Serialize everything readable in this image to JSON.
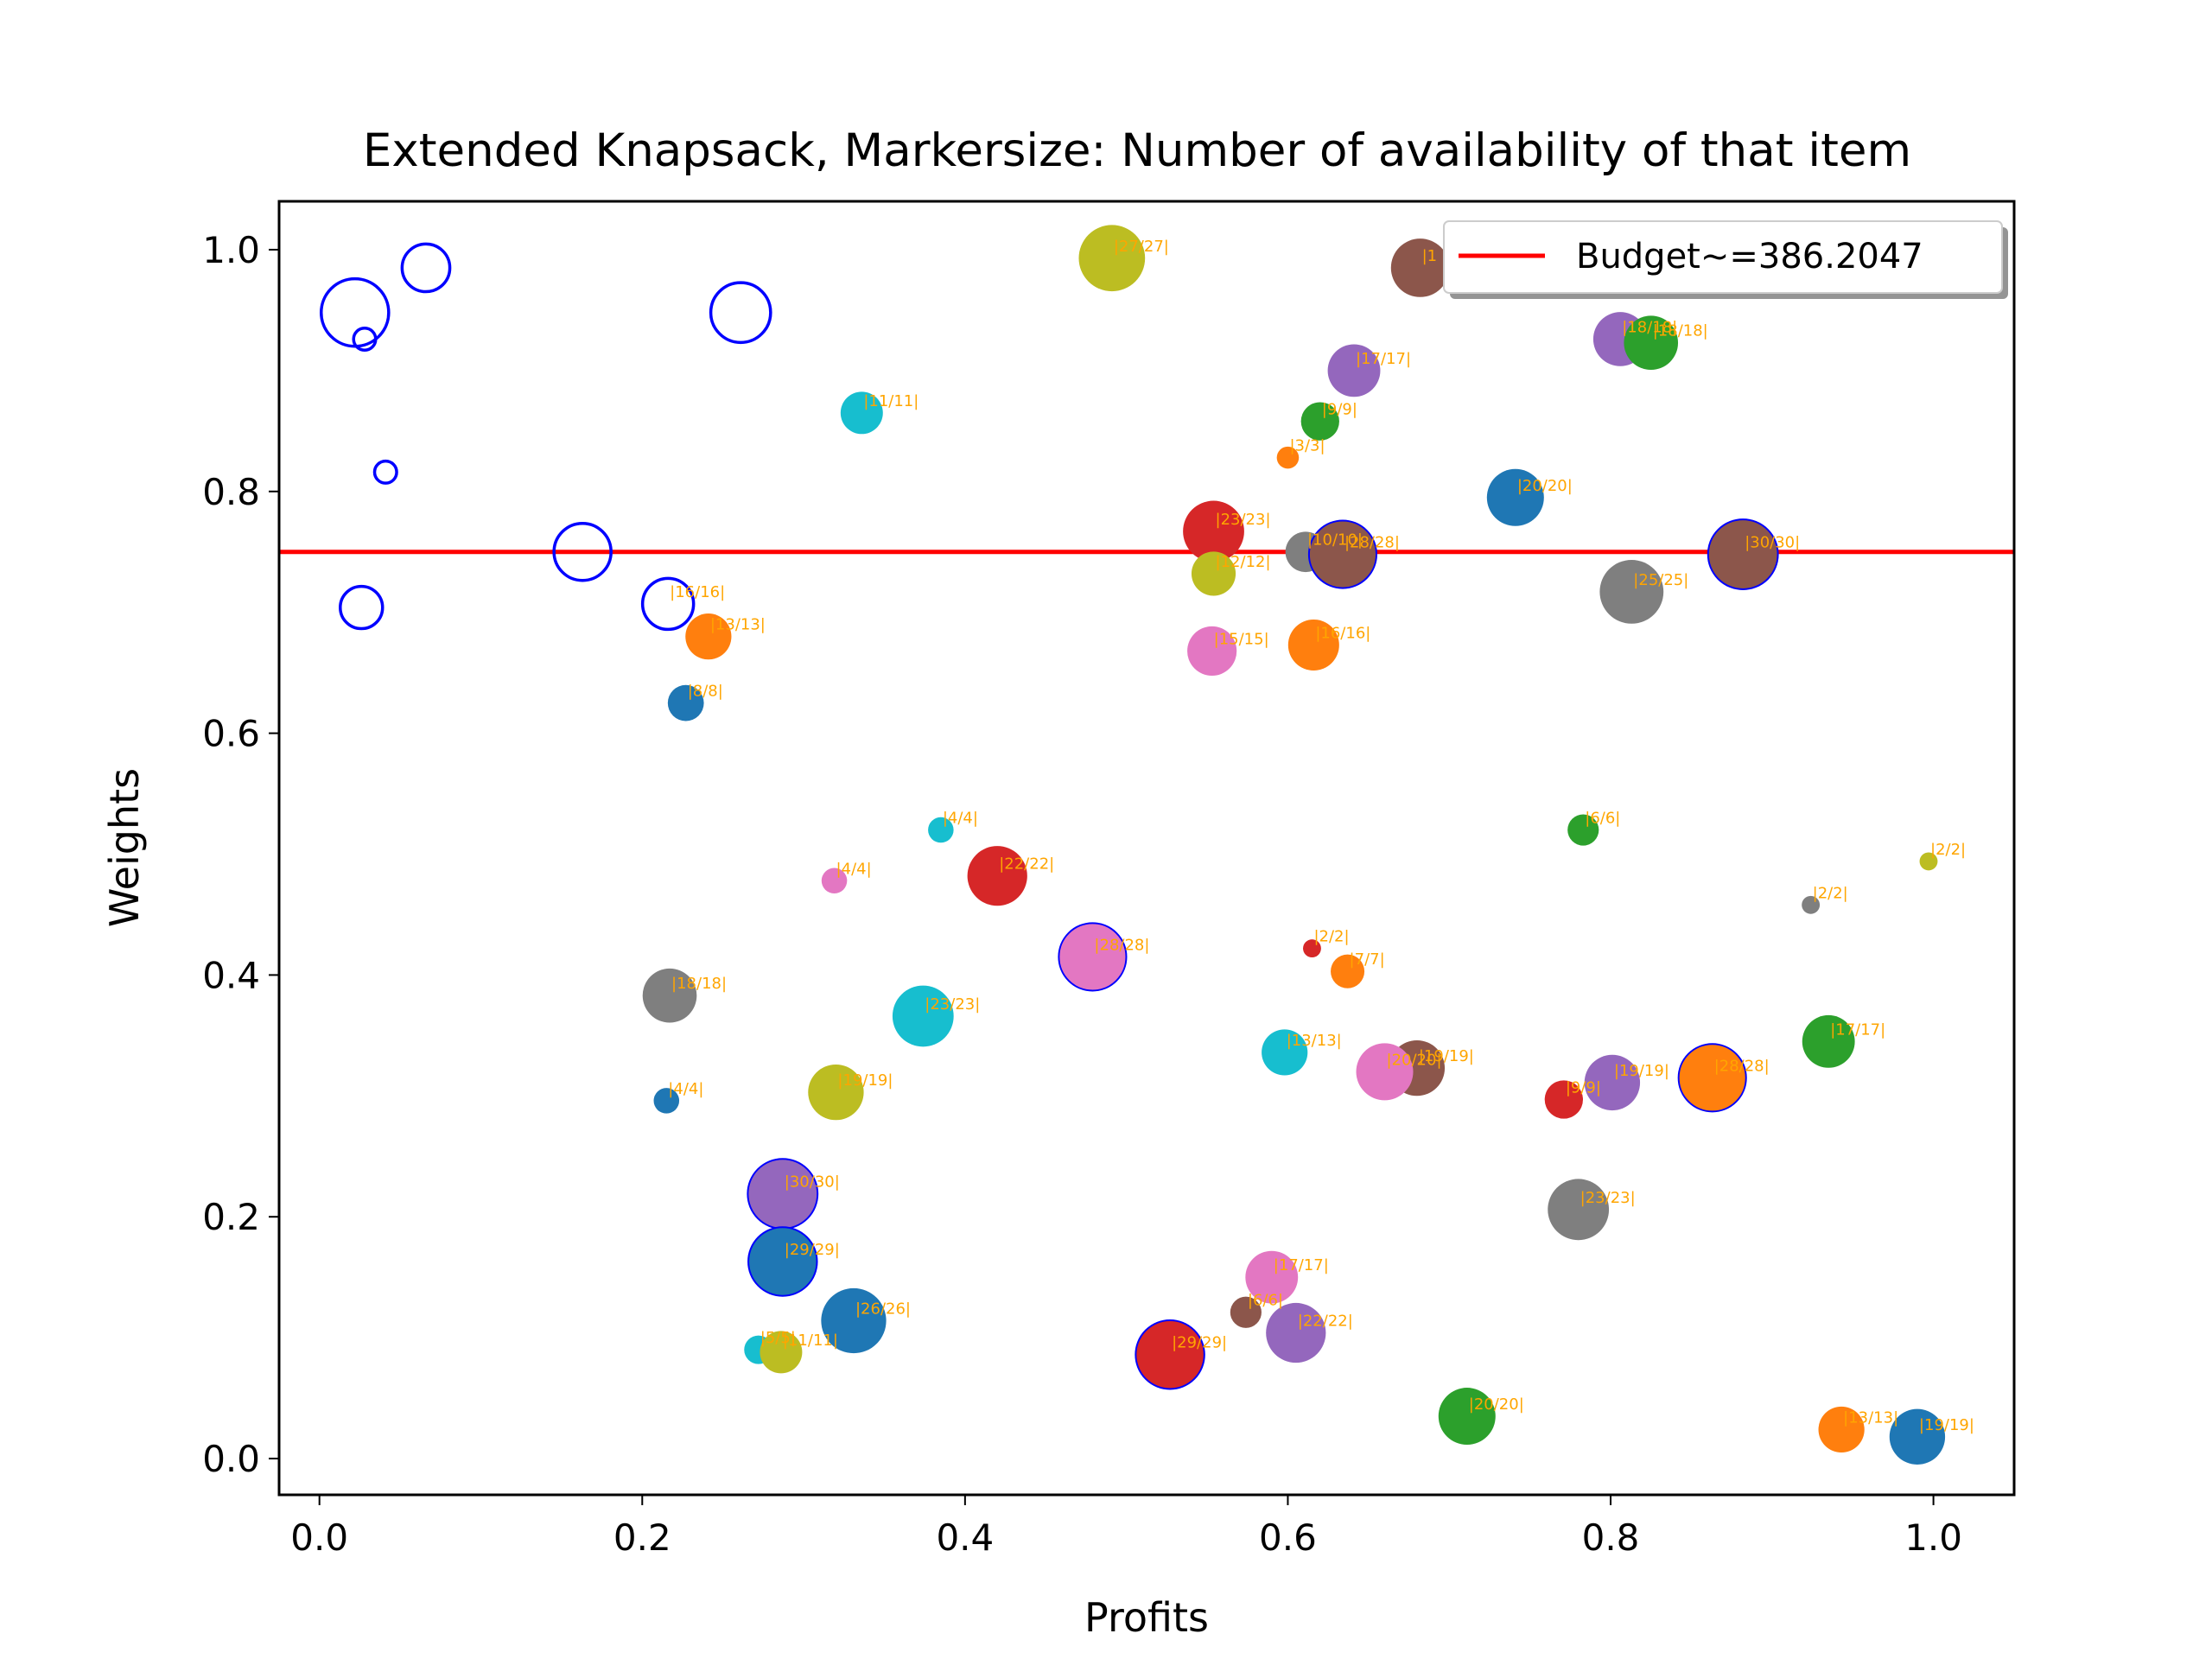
{
  "chart_data": {
    "type": "scatter",
    "title": "Extended Knapsack, Markersize: Number of availability of that item",
    "xlabel": "Profits",
    "ylabel": "Weights",
    "xlim": [
      -0.025,
      1.05
    ],
    "ylim": [
      -0.03,
      1.04
    ],
    "xticks": [
      0.0,
      0.2,
      0.4,
      0.6,
      0.8,
      1.0
    ],
    "xtick_labels": [
      "0.0",
      "0.2",
      "0.4",
      "0.6",
      "0.8",
      "1.0"
    ],
    "yticks": [
      0.0,
      0.2,
      0.4,
      0.6,
      0.8,
      1.0
    ],
    "ytick_labels": [
      "0.0",
      "0.2",
      "0.4",
      "0.6",
      "0.8",
      "1.0"
    ],
    "grid": false,
    "legend": {
      "placement": "top-right",
      "entries": [
        "Budget~=386.2047"
      ]
    },
    "budget_line": {
      "y": 0.75,
      "color": "#FF0000",
      "label": "Budget~=386.2047"
    },
    "colors": {
      "blue": "#1f77b4",
      "orange": "#ff7f0e",
      "green": "#2ca02c",
      "red": "#d62728",
      "purple": "#9467bd",
      "brown": "#8c564b",
      "pink": "#e377c2",
      "gray": "#7f7f7f",
      "olive": "#bcbd22",
      "cyan": "#17becf",
      "unselected": "#0000FF",
      "label": "#FFA500"
    },
    "selected_items": [
      {
        "x": 0.491,
        "y": 0.993,
        "n": 27,
        "color": "olive",
        "label": "|27/27|"
      },
      {
        "x": 0.682,
        "y": 0.985,
        "n": 21,
        "color": "brown",
        "label": "|1"
      },
      {
        "x": 0.806,
        "y": 0.926,
        "n": 18,
        "color": "purple",
        "label": "|18/18|"
      },
      {
        "x": 0.825,
        "y": 0.923,
        "n": 18,
        "color": "green",
        "label": "|18/18|"
      },
      {
        "x": 0.641,
        "y": 0.9,
        "n": 17,
        "color": "purple",
        "label": "|17/17|"
      },
      {
        "x": 0.336,
        "y": 0.865,
        "n": 11,
        "color": "cyan",
        "label": "|11/11|"
      },
      {
        "x": 0.62,
        "y": 0.858,
        "n": 9,
        "color": "green",
        "label": "|9/9|"
      },
      {
        "x": 0.6,
        "y": 0.828,
        "n": 3,
        "color": "orange",
        "label": "|3/3|"
      },
      {
        "x": 0.741,
        "y": 0.795,
        "n": 20,
        "color": "blue",
        "label": "|20/20|"
      },
      {
        "x": 0.554,
        "y": 0.767,
        "n": 23,
        "color": "red",
        "label": "|23/23|"
      },
      {
        "x": 0.611,
        "y": 0.75,
        "n": 10,
        "color": "gray",
        "label": "|10/10|"
      },
      {
        "x": 0.634,
        "y": 0.748,
        "n": 28,
        "color": "brown",
        "label": "|28/28|",
        "edge": true
      },
      {
        "x": 0.882,
        "y": 0.748,
        "n": 30,
        "color": "brown",
        "label": "|30/30|",
        "edge": true
      },
      {
        "x": 0.554,
        "y": 0.732,
        "n": 12,
        "color": "olive",
        "label": "|12/12|"
      },
      {
        "x": 0.813,
        "y": 0.717,
        "n": 25,
        "color": "gray",
        "label": "|25/25|"
      },
      {
        "x": 0.216,
        "y": 0.707,
        "n": 16,
        "color": "blue",
        "label": "|16/16|",
        "hollow": true
      },
      {
        "x": 0.241,
        "y": 0.68,
        "n": 13,
        "color": "orange",
        "label": "|13/13|"
      },
      {
        "x": 0.616,
        "y": 0.673,
        "n": 16,
        "color": "orange",
        "label": "|16/16|"
      },
      {
        "x": 0.553,
        "y": 0.668,
        "n": 15,
        "color": "pink",
        "label": "|15/15|"
      },
      {
        "x": 0.227,
        "y": 0.625,
        "n": 8,
        "color": "blue",
        "label": "|8/8|"
      },
      {
        "x": 0.385,
        "y": 0.52,
        "n": 4,
        "color": "cyan",
        "label": "|4/4|"
      },
      {
        "x": 0.783,
        "y": 0.52,
        "n": 6,
        "color": "green",
        "label": "|6/6|"
      },
      {
        "x": 0.997,
        "y": 0.494,
        "n": 2,
        "color": "olive",
        "label": "|2/2|"
      },
      {
        "x": 0.319,
        "y": 0.478,
        "n": 4,
        "color": "pink",
        "label": "|4/4|"
      },
      {
        "x": 0.42,
        "y": 0.482,
        "n": 22,
        "color": "red",
        "label": "|22/22|"
      },
      {
        "x": 0.924,
        "y": 0.458,
        "n": 2,
        "color": "gray",
        "label": "|2/2|"
      },
      {
        "x": 0.479,
        "y": 0.415,
        "n": 28,
        "color": "pink",
        "label": "|28/28|",
        "edge": true
      },
      {
        "x": 0.615,
        "y": 0.422,
        "n": 2,
        "color": "red",
        "label": "|2/2|"
      },
      {
        "x": 0.637,
        "y": 0.403,
        "n": 7,
        "color": "orange",
        "label": "|7/7|"
      },
      {
        "x": 0.217,
        "y": 0.383,
        "n": 18,
        "color": "gray",
        "label": "|18/18|"
      },
      {
        "x": 0.374,
        "y": 0.366,
        "n": 23,
        "color": "cyan",
        "label": "|23/23|"
      },
      {
        "x": 0.935,
        "y": 0.345,
        "n": 17,
        "color": "green",
        "label": "|17/17|"
      },
      {
        "x": 0.598,
        "y": 0.336,
        "n": 13,
        "color": "cyan",
        "label": "|13/13|"
      },
      {
        "x": 0.68,
        "y": 0.323,
        "n": 19,
        "color": "brown",
        "label": "|19/19|"
      },
      {
        "x": 0.66,
        "y": 0.32,
        "n": 20,
        "color": "pink",
        "label": "|20/20|"
      },
      {
        "x": 0.801,
        "y": 0.311,
        "n": 19,
        "color": "purple",
        "label": "|19/19|"
      },
      {
        "x": 0.863,
        "y": 0.315,
        "n": 28,
        "color": "orange",
        "label": "|28/28|",
        "edge": true
      },
      {
        "x": 0.32,
        "y": 0.303,
        "n": 19,
        "color": "olive",
        "label": "|19/19|"
      },
      {
        "x": 0.215,
        "y": 0.296,
        "n": 4,
        "color": "blue",
        "label": "|4/4|"
      },
      {
        "x": 0.771,
        "y": 0.297,
        "n": 9,
        "color": "red",
        "label": "|9/9|"
      },
      {
        "x": 0.287,
        "y": 0.219,
        "n": 30,
        "color": "purple",
        "label": "|30/30|",
        "edge": true
      },
      {
        "x": 0.78,
        "y": 0.206,
        "n": 23,
        "color": "gray",
        "label": "|23/23|"
      },
      {
        "x": 0.287,
        "y": 0.163,
        "n": 29,
        "color": "blue",
        "label": "|29/29|",
        "edge": true
      },
      {
        "x": 0.59,
        "y": 0.15,
        "n": 17,
        "color": "pink",
        "label": "|17/17|"
      },
      {
        "x": 0.574,
        "y": 0.121,
        "n": 6,
        "color": "brown",
        "label": "|6/6|"
      },
      {
        "x": 0.331,
        "y": 0.114,
        "n": 26,
        "color": "blue",
        "label": "|26/26|"
      },
      {
        "x": 0.605,
        "y": 0.104,
        "n": 22,
        "color": "purple",
        "label": "|22/22|"
      },
      {
        "x": 0.272,
        "y": 0.09,
        "n": 5,
        "color": "cyan",
        "label": "|5/5|"
      },
      {
        "x": 0.286,
        "y": 0.088,
        "n": 11,
        "color": "olive",
        "label": "|11/11|"
      },
      {
        "x": 0.527,
        "y": 0.086,
        "n": 29,
        "color": "red",
        "label": "|29/29|",
        "edge": true
      },
      {
        "x": 0.711,
        "y": 0.035,
        "n": 20,
        "color": "green",
        "label": "|20/20|"
      },
      {
        "x": 0.943,
        "y": 0.024,
        "n": 13,
        "color": "orange",
        "label": "|13/13|"
      },
      {
        "x": 0.99,
        "y": 0.018,
        "n": 19,
        "color": "blue",
        "label": "|19/19|"
      }
    ],
    "unselected_items": [
      {
        "x": 0.022,
        "y": 0.948,
        "n": 28
      },
      {
        "x": 0.028,
        "y": 0.926,
        "n": 3
      },
      {
        "x": 0.066,
        "y": 0.985,
        "n": 14
      },
      {
        "x": 0.261,
        "y": 0.948,
        "n": 22
      },
      {
        "x": 0.041,
        "y": 0.816,
        "n": 3
      },
      {
        "x": 0.163,
        "y": 0.75,
        "n": 20
      },
      {
        "x": 0.026,
        "y": 0.704,
        "n": 11
      }
    ]
  }
}
